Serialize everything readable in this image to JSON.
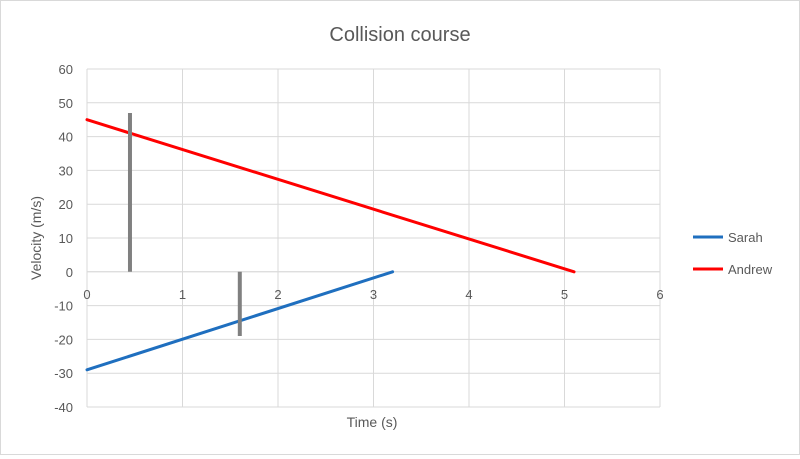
{
  "chart_data": {
    "type": "line",
    "title": "Collision course",
    "xlabel": "Time  (s)",
    "ylabel": "Velocity  (m/s)",
    "xlim": [
      0,
      6
    ],
    "ylim": [
      -40,
      60
    ],
    "x_ticks": [
      0,
      1,
      2,
      3,
      4,
      5,
      6
    ],
    "y_ticks": [
      -40,
      -30,
      -20,
      -10,
      0,
      10,
      20,
      30,
      40,
      50,
      60
    ],
    "grid": true,
    "legend_position": "right",
    "series": [
      {
        "name": "Sarah",
        "color": "#1f6fbf",
        "points": [
          [
            0,
            -29
          ],
          [
            3.2,
            0
          ]
        ]
      },
      {
        "name": "Andrew",
        "color": "#ff0000",
        "points": [
          [
            0,
            45
          ],
          [
            5.1,
            0
          ]
        ]
      }
    ],
    "annotations": [
      {
        "type": "vertical-marker",
        "color": "#808080",
        "x": 0.45,
        "y_from": 0,
        "y_to": 47
      },
      {
        "type": "vertical-marker",
        "color": "#808080",
        "x": 1.6,
        "y_from": 0,
        "y_to": -19
      }
    ]
  }
}
